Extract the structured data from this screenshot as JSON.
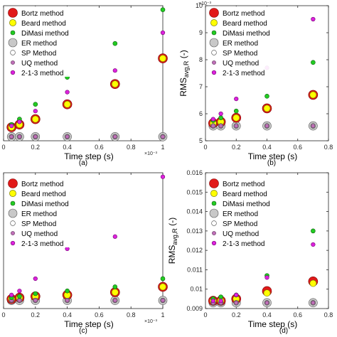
{
  "figure": {
    "method_names": [
      "Bortz method",
      "Beard method",
      "DiMasi method",
      "ER method",
      "SP Method",
      "UQ method",
      "2-1-3 method"
    ]
  },
  "chart_data": [
    {
      "type": "scatter",
      "panel_label": "(a)",
      "xlabel": "Time step (s)",
      "ylabel": "",
      "x_exponent_label": "×10⁻³",
      "y_exponent_label": "",
      "xlim": [
        0,
        1
      ],
      "ylim": [
        0,
        1
      ],
      "xticks": [
        0,
        0.2,
        0.4,
        0.6,
        0.8,
        1
      ],
      "xtick_labels": [
        "0",
        "0.2",
        "0.4",
        "0.6",
        "0.8",
        "1"
      ],
      "yticks": [],
      "ytick_labels": [],
      "grid": false,
      "legend_position": "top-left",
      "x": [
        0.05,
        0.1,
        0.2,
        0.4,
        0.7,
        1.0
      ],
      "series": [
        {
          "name": "Bortz method",
          "values": [
            0.1,
            0.12,
            0.16,
            0.27,
            0.42,
            0.61
          ]
        },
        {
          "name": "Beard method",
          "values": [
            0.1,
            0.12,
            0.16,
            0.27,
            0.42,
            0.61
          ]
        },
        {
          "name": "DiMasi method",
          "values": [
            0.12,
            0.16,
            0.27,
            0.47,
            0.72,
            0.97
          ]
        },
        {
          "name": "ER method",
          "values": [
            0.03,
            0.03,
            0.03,
            0.03,
            0.03,
            0.03
          ]
        },
        {
          "name": "SP Method",
          "values": [
            0.03,
            0.03,
            0.03,
            0.03,
            0.03,
            0.03
          ]
        },
        {
          "name": "UQ method",
          "values": [
            0.03,
            0.03,
            0.03,
            0.03,
            0.03,
            0.03
          ]
        },
        {
          "name": "2-1-3 method",
          "values": [
            0.11,
            0.14,
            0.22,
            0.36,
            0.52,
            0.8
          ]
        }
      ]
    },
    {
      "type": "scatter",
      "panel_label": "(b)",
      "xlabel": "Time step (s)",
      "ylabel": "RMS avg,R (-)",
      "x_exponent_label": "",
      "y_exponent_label": "×10⁻³",
      "xlim": [
        0,
        0.8
      ],
      "ylim": [
        5,
        10
      ],
      "xticks": [
        0,
        0.2,
        0.4,
        0.6,
        0.8
      ],
      "xtick_labels": [
        "0",
        "0.2",
        "0.4",
        "0.6",
        "0.8"
      ],
      "yticks": [
        5,
        6,
        7,
        8,
        9,
        10
      ],
      "ytick_labels": [
        "5",
        "6",
        "7",
        "8",
        "9",
        "10"
      ],
      "grid": false,
      "legend_position": "top-left",
      "x": [
        0.05,
        0.1,
        0.2,
        0.4,
        0.7
      ],
      "series": [
        {
          "name": "Bortz method",
          "values": [
            5.65,
            5.7,
            5.85,
            6.2,
            6.7
          ]
        },
        {
          "name": "Beard method",
          "values": [
            5.65,
            5.7,
            5.85,
            6.2,
            6.7
          ]
        },
        {
          "name": "DiMasi method",
          "values": [
            5.75,
            5.85,
            6.1,
            6.65,
            7.9
          ]
        },
        {
          "name": "ER method",
          "values": [
            5.55,
            5.55,
            5.55,
            5.55,
            5.55
          ]
        },
        {
          "name": "SP Method",
          "values": [
            5.55,
            5.55,
            5.55,
            5.55,
            5.55
          ]
        },
        {
          "name": "UQ method",
          "values": [
            5.55,
            5.55,
            5.55,
            5.55,
            5.55
          ]
        },
        {
          "name": "2-1-3 method",
          "values": [
            5.8,
            6.0,
            6.55,
            7.7,
            9.5
          ]
        }
      ]
    },
    {
      "type": "scatter",
      "panel_label": "(c)",
      "xlabel": "Time step (s)",
      "ylabel": "",
      "x_exponent_label": "×10⁻³",
      "y_exponent_label": "",
      "xlim": [
        0,
        1
      ],
      "ylim": [
        0,
        1
      ],
      "xticks": [
        0,
        0.2,
        0.4,
        0.6,
        0.8,
        1
      ],
      "xtick_labels": [
        "0",
        "0.2",
        "0.4",
        "0.6",
        "0.8",
        "1"
      ],
      "yticks": [],
      "ytick_labels": [],
      "grid": false,
      "legend_position": "top-left",
      "x": [
        0.05,
        0.1,
        0.2,
        0.4,
        0.7,
        1.0
      ],
      "series": [
        {
          "name": "Bortz method",
          "values": [
            0.07,
            0.08,
            0.09,
            0.1,
            0.12,
            0.16
          ]
        },
        {
          "name": "Beard method",
          "values": [
            0.07,
            0.08,
            0.09,
            0.1,
            0.12,
            0.16
          ]
        },
        {
          "name": "DiMasi method",
          "values": [
            0.08,
            0.09,
            0.11,
            0.13,
            0.16,
            0.22
          ]
        },
        {
          "name": "ER method",
          "values": [
            0.06,
            0.06,
            0.06,
            0.06,
            0.06,
            0.06
          ]
        },
        {
          "name": "SP Method",
          "values": [
            0.06,
            0.06,
            0.06,
            0.06,
            0.06,
            0.06
          ]
        },
        {
          "name": "UQ method",
          "values": [
            0.06,
            0.06,
            0.06,
            0.06,
            0.06,
            0.06
          ]
        },
        {
          "name": "2-1-3 method",
          "values": [
            0.1,
            0.13,
            0.22,
            0.44,
            0.53,
            0.97
          ]
        }
      ]
    },
    {
      "type": "scatter",
      "panel_label": "(d)",
      "xlabel": "Time step (s)",
      "ylabel": "RMS avg,R (-)",
      "x_exponent_label": "",
      "y_exponent_label": "",
      "xlim": [
        0,
        0.8
      ],
      "ylim": [
        0.009,
        0.016
      ],
      "xticks": [
        0,
        0.2,
        0.4,
        0.6,
        0.8
      ],
      "xtick_labels": [
        "0",
        "0.2",
        "0.4",
        "0.6",
        "0.8"
      ],
      "yticks": [
        0.009,
        0.01,
        0.011,
        0.012,
        0.013,
        0.014,
        0.015,
        0.016
      ],
      "ytick_labels": [
        "0.009",
        "0.01",
        "0.011",
        "0.012",
        "0.013",
        "0.014",
        "0.015",
        "0.016"
      ],
      "grid": false,
      "legend_position": "top-left",
      "x": [
        0.05,
        0.1,
        0.2,
        0.4,
        0.7
      ],
      "series": [
        {
          "name": "Bortz method",
          "values": [
            0.0094,
            0.0094,
            0.0095,
            0.0099,
            0.0104
          ]
        },
        {
          "name": "Beard method",
          "values": [
            0.0094,
            0.0094,
            0.0095,
            0.0098,
            0.0103
          ]
        },
        {
          "name": "DiMasi method",
          "values": [
            0.0095,
            0.0096,
            0.0097,
            0.0107,
            0.013
          ]
        },
        {
          "name": "ER method",
          "values": [
            0.0093,
            0.0093,
            0.0093,
            0.0093,
            0.0093
          ]
        },
        {
          "name": "SP Method",
          "values": [
            0.0093,
            0.0093,
            0.0093,
            0.0093,
            0.0093
          ]
        },
        {
          "name": "UQ method",
          "values": [
            0.0093,
            0.0093,
            0.0093,
            0.0093,
            0.0093
          ]
        },
        {
          "name": "2-1-3 method",
          "values": [
            0.0094,
            0.0094,
            0.0097,
            0.0106,
            0.0123
          ]
        }
      ]
    }
  ],
  "colors": {
    "bortz": "#e11919",
    "beard": "#ffff00",
    "dimasi": "#22cc22",
    "er": "#c8c8c8",
    "sp": "#ffffff",
    "uq": "#c070b8",
    "m213": "#dd22dd",
    "axis": "#262626"
  }
}
